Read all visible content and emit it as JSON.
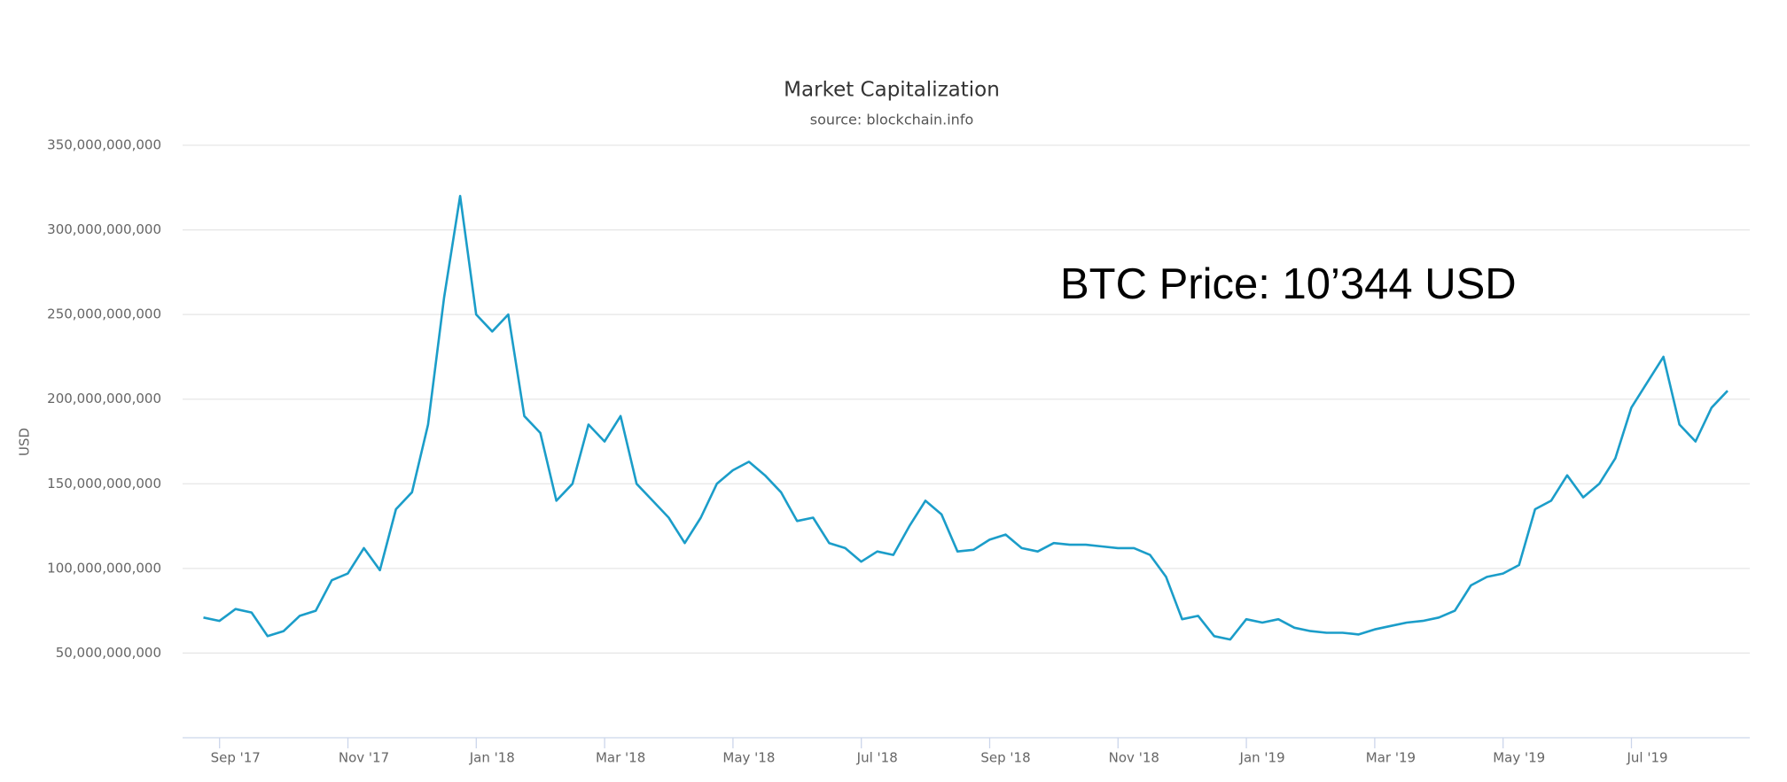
{
  "chart_data": {
    "type": "line",
    "title": "Market Capitalization",
    "subtitle": "source: blockchain.info",
    "y_label": "USD",
    "annotation": "BTC Price: 10’344 USD",
    "color": "#1b9dc9",
    "grid": true,
    "ylim": [
      0,
      350000000000
    ],
    "yticks": [
      {
        "value": 50000000000,
        "label": "50,000,000,000"
      },
      {
        "value": 100000000000,
        "label": "100,000,000,000"
      },
      {
        "value": 150000000000,
        "label": "150,000,000,000"
      },
      {
        "value": 200000000000,
        "label": "200,000,000,000"
      },
      {
        "value": 250000000000,
        "label": "250,000,000,000"
      },
      {
        "value": 300000000000,
        "label": "300,000,000,000"
      },
      {
        "value": 350000000000,
        "label": "350,000,000,000"
      }
    ],
    "categories": [
      null,
      null,
      "Sep '17",
      null,
      null,
      null,
      null,
      null,
      null,
      null,
      "Nov '17",
      null,
      null,
      null,
      null,
      null,
      null,
      null,
      "Jan '18",
      null,
      null,
      null,
      null,
      null,
      null,
      null,
      "Mar '18",
      null,
      null,
      null,
      null,
      null,
      null,
      null,
      "May '18",
      null,
      null,
      null,
      null,
      null,
      null,
      null,
      "Jul '18",
      null,
      null,
      null,
      null,
      null,
      null,
      null,
      "Sep '18",
      null,
      null,
      null,
      null,
      null,
      null,
      null,
      "Nov '18",
      null,
      null,
      null,
      null,
      null,
      null,
      null,
      "Jan '19",
      null,
      null,
      null,
      null,
      null,
      null,
      null,
      "Mar '19",
      null,
      null,
      null,
      null,
      null,
      null,
      null,
      "May '19",
      null,
      null,
      null,
      null,
      null,
      null,
      null,
      "Jul '19",
      null,
      null,
      null,
      null,
      null
    ],
    "values": [
      71000000000,
      69000000000,
      76000000000,
      74000000000,
      60000000000,
      63000000000,
      72000000000,
      75000000000,
      93000000000,
      97000000000,
      112000000000,
      99000000000,
      135000000000,
      145000000000,
      185000000000,
      260000000000,
      320000000000,
      250000000000,
      240000000000,
      250000000000,
      190000000000,
      180000000000,
      140000000000,
      150000000000,
      185000000000,
      175000000000,
      190000000000,
      150000000000,
      140000000000,
      130000000000,
      115000000000,
      130000000000,
      150000000000,
      158000000000,
      163000000000,
      155000000000,
      145000000000,
      128000000000,
      130000000000,
      115000000000,
      112000000000,
      104000000000,
      110000000000,
      108000000000,
      125000000000,
      140000000000,
      132000000000,
      110000000000,
      111000000000,
      117000000000,
      120000000000,
      112000000000,
      110000000000,
      115000000000,
      114000000000,
      114000000000,
      113000000000,
      112000000000,
      112000000000,
      108000000000,
      95000000000,
      70000000000,
      72000000000,
      60000000000,
      58000000000,
      70000000000,
      68000000000,
      70000000000,
      65000000000,
      63000000000,
      62000000000,
      62000000000,
      61000000000,
      64000000000,
      66000000000,
      68000000000,
      69000000000,
      71000000000,
      75000000000,
      90000000000,
      95000000000,
      97000000000,
      102000000000,
      135000000000,
      140000000000,
      155000000000,
      142000000000,
      150000000000,
      165000000000,
      195000000000,
      210000000000,
      225000000000,
      185000000000,
      175000000000,
      195000000000,
      205000000000
    ]
  }
}
